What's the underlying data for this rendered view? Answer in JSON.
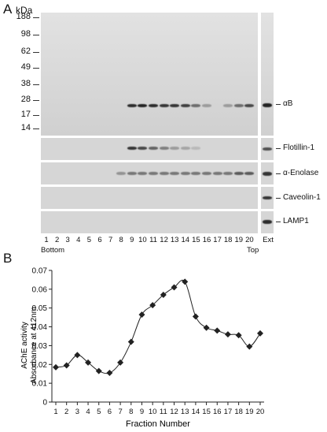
{
  "panel_a": {
    "letter": "A",
    "unit": "kDa",
    "mw_markers": [
      "188",
      "98",
      "62",
      "49",
      "38",
      "28",
      "17",
      "14"
    ],
    "row_labels": [
      "αB",
      "Flotillin-1",
      "α-Enolase",
      "Caveolin-1",
      "LAMP1"
    ],
    "lane_numbers": [
      "1",
      "2",
      "3",
      "4",
      "5",
      "6",
      "7",
      "8",
      "9",
      "10",
      "11",
      "12",
      "13",
      "14",
      "15",
      "16",
      "17",
      "18",
      "19",
      "20"
    ],
    "ext_label": "Ext",
    "bottom_label": "Bottom",
    "top_label": "Top"
  },
  "panel_b": {
    "letter": "B"
  },
  "chart_data": {
    "type": "line",
    "xlabel": "Fraction Number",
    "ylabel_line1": "AChE activity",
    "ylabel_line2": "Absorbance at 412nm",
    "x": [
      1,
      2,
      3,
      4,
      5,
      6,
      7,
      8,
      9,
      10,
      11,
      12,
      13,
      14,
      15,
      16,
      17,
      18,
      19,
      20
    ],
    "values": [
      0.0185,
      0.0195,
      0.025,
      0.021,
      0.0165,
      0.0155,
      0.021,
      0.032,
      0.0465,
      0.0515,
      0.057,
      0.061,
      0.064,
      0.0455,
      0.0395,
      0.038,
      0.036,
      0.0355,
      0.0295,
      0.0365
    ],
    "ylim": [
      0,
      0.07
    ],
    "yticks": [
      "0",
      "0.01",
      "0.02",
      "0.03",
      "0.04",
      "0.05",
      "0.06",
      "0.07"
    ],
    "xticks": [
      "1",
      "2",
      "3",
      "4",
      "5",
      "6",
      "7",
      "8",
      "9",
      "10",
      "11",
      "12",
      "13",
      "14",
      "15",
      "16",
      "17",
      "18",
      "19",
      "20"
    ],
    "marker": "diamond",
    "grid": false,
    "line_color": "#222222"
  }
}
